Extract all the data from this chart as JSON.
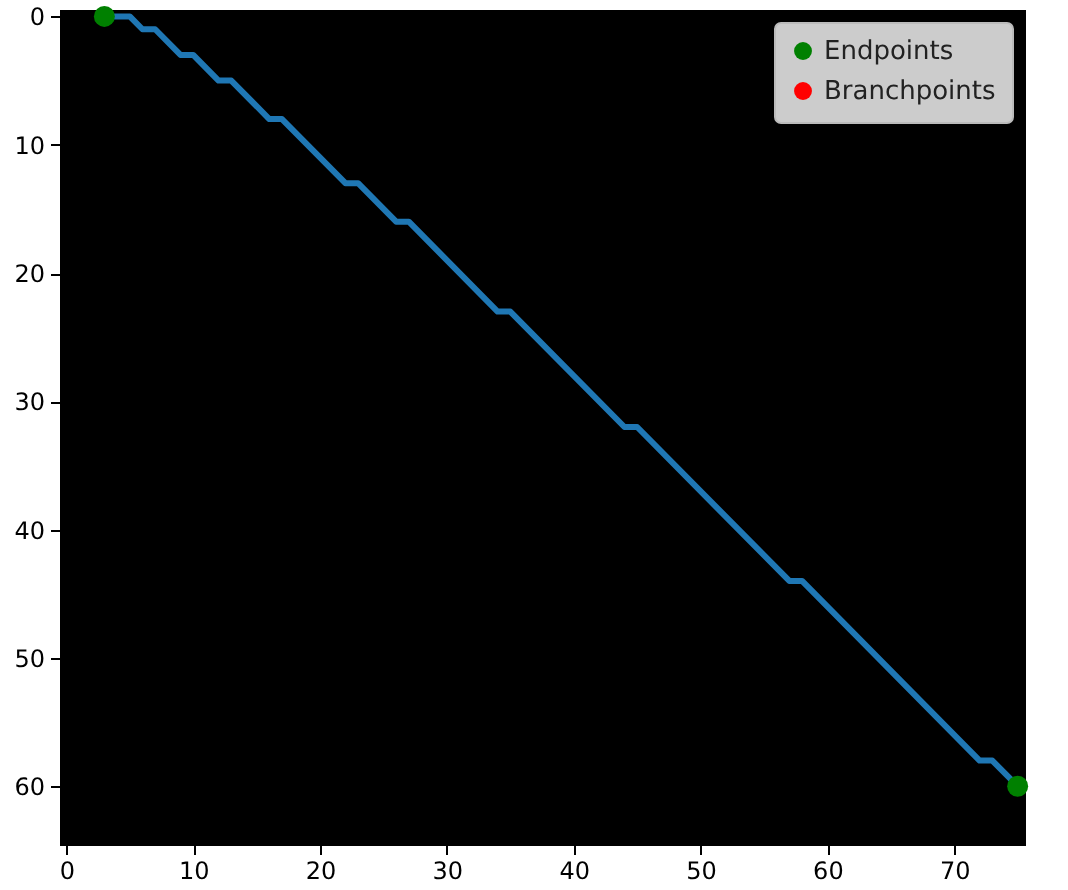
{
  "chart_data": {
    "type": "scatter",
    "series": [
      {
        "type": "line",
        "marker": "none",
        "color": "#1f77b4",
        "x": [
          3,
          5,
          6,
          7,
          9,
          10,
          12,
          13,
          16,
          17,
          22,
          23,
          26,
          27,
          34,
          35,
          44,
          45,
          57,
          58,
          72,
          73,
          75
        ],
        "values": [
          0,
          0,
          1,
          1,
          3,
          3,
          5,
          5,
          8,
          8,
          13,
          13,
          16,
          16,
          23,
          23,
          32,
          32,
          44,
          44,
          58,
          58,
          60
        ]
      },
      {
        "name": "Endpoints",
        "color": "#008000",
        "x": [
          3,
          75
        ],
        "values": [
          0,
          60
        ]
      },
      {
        "name": "Branchpoints",
        "color": "#ff0000"
      }
    ],
    "xlim": [
      -0.5,
      75.5
    ],
    "ylim": [
      64.5,
      -0.5
    ],
    "xticks": [
      0,
      10,
      20,
      30,
      40,
      50,
      60,
      70
    ],
    "yticks": [
      0,
      10,
      20,
      30,
      40,
      50,
      60
    ],
    "marker": "circle",
    "legend": "top right",
    "grid": false
  }
}
